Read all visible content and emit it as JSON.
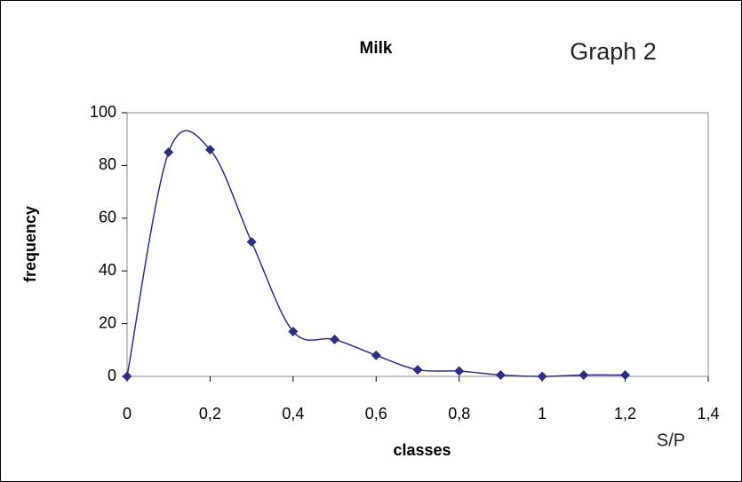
{
  "chart_data": {
    "type": "line",
    "title": "Milk",
    "annotation": "Graph 2",
    "unit_label": "S/P",
    "x_label": "classes",
    "y_label": "frequency",
    "x": [
      0,
      0.1,
      0.2,
      0.3,
      0.4,
      0.5,
      0.6,
      0.7,
      0.8,
      0.9,
      1,
      1.1,
      1.2
    ],
    "series": [
      {
        "name": "Milk",
        "color": "#2e2e80",
        "values": [
          0,
          85,
          86,
          51,
          17,
          14,
          8,
          2.5,
          2,
          0.5,
          0,
          0.5,
          0.5
        ]
      }
    ],
    "xlim": [
      0,
      1.4
    ],
    "ylim": [
      0,
      100
    ],
    "xticks": [
      0,
      {
        "value": 0.2,
        "label": "0,2"
      },
      {
        "value": 0.4,
        "label": "0,4"
      },
      {
        "value": 0.6,
        "label": "0,6"
      },
      {
        "value": 0.8,
        "label": "0,8"
      },
      1,
      {
        "value": 1.2,
        "label": "1,2"
      },
      {
        "value": 1.4,
        "label": "1,4"
      }
    ],
    "yticks": [
      0,
      20,
      40,
      60,
      80,
      100
    ],
    "smooth": true
  }
}
